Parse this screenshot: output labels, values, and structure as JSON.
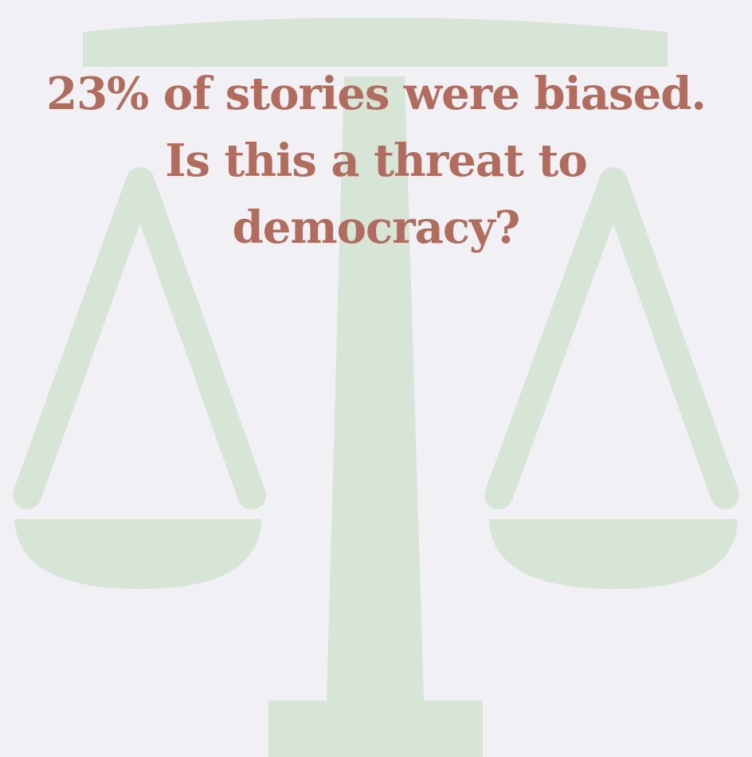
{
  "graphic": {
    "icon": "scales-of-justice-icon",
    "color": "#d6e5d6",
    "background": "#f1f0f4"
  },
  "headline": {
    "line1": "23% of stories were biased.",
    "line2": "Is this a threat to",
    "line3": "democracy?",
    "color": "#b06a5c"
  }
}
